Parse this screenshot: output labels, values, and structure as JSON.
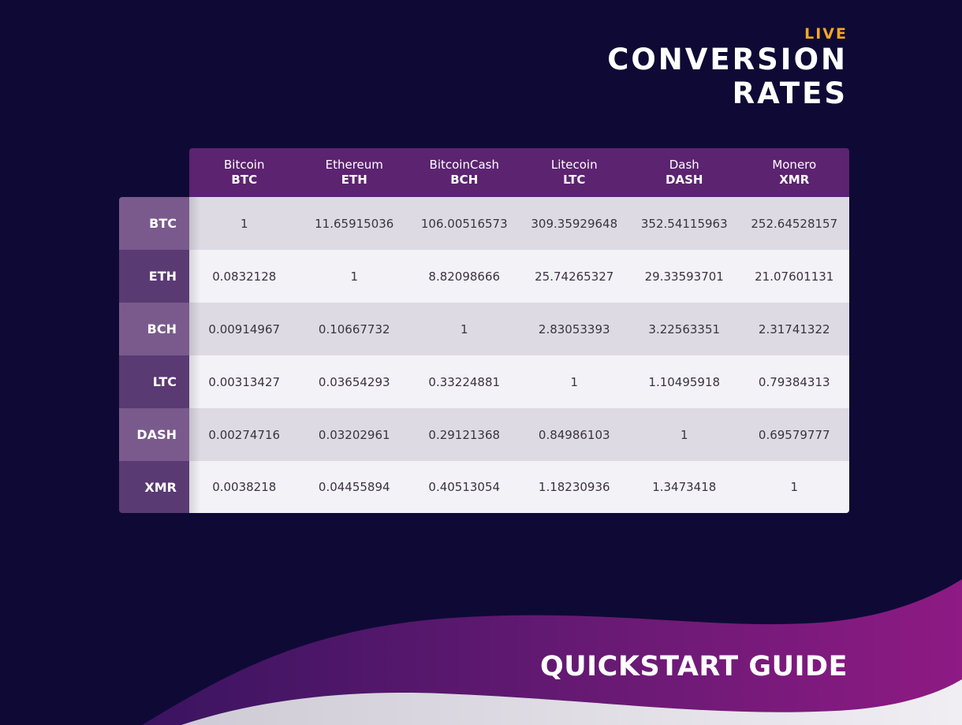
{
  "heading": {
    "live": "LIVE",
    "title": "CONVERSION\nRATES"
  },
  "colors": {
    "background": "#0e0a35",
    "accent": "#f5a623",
    "header_purple": "#5c2370",
    "wave_start": "#3a1460",
    "wave_end": "#8e1a84"
  },
  "table": {
    "columns": [
      {
        "name": "Bitcoin",
        "code": "BTC"
      },
      {
        "name": "Ethereum",
        "code": "ETH"
      },
      {
        "name": "BitcoinCash",
        "code": "BCH"
      },
      {
        "name": "Litecoin",
        "code": "LTC"
      },
      {
        "name": "Dash",
        "code": "DASH"
      },
      {
        "name": "Monero",
        "code": "XMR"
      }
    ],
    "rows": [
      {
        "label": "BTC",
        "values": [
          "1",
          "11.65915036",
          "106.00516573",
          "309.35929648",
          "352.54115963",
          "252.64528157"
        ]
      },
      {
        "label": "ETH",
        "values": [
          "0.0832128",
          "1",
          "8.82098666",
          "25.74265327",
          "29.33593701",
          "21.07601131"
        ]
      },
      {
        "label": "BCH",
        "values": [
          "0.00914967",
          "0.10667732",
          "1",
          "2.83053393",
          "3.22563351",
          "2.31741322"
        ]
      },
      {
        "label": "LTC",
        "values": [
          "0.00313427",
          "0.03654293",
          "0.33224881",
          "1",
          "1.10495918",
          "0.79384313"
        ]
      },
      {
        "label": "DASH",
        "values": [
          "0.00274716",
          "0.03202961",
          "0.29121368",
          "0.84986103",
          "1",
          "0.69579777"
        ]
      },
      {
        "label": "XMR",
        "values": [
          "0.0038218",
          "0.04455894",
          "0.40513054",
          "1.18230936",
          "1.3473418",
          "1"
        ]
      }
    ]
  },
  "footer": {
    "title": "QUICKSTART GUIDE"
  }
}
